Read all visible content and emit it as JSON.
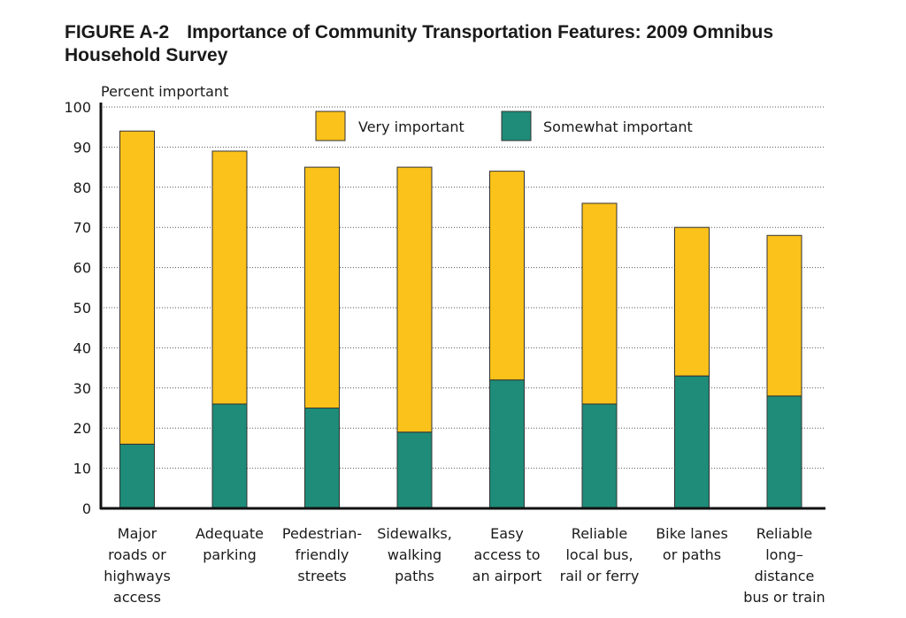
{
  "title": {
    "figure": "FIGURE A-2",
    "line1": "Importance of Community Transportation Features: 2009 Omnibus",
    "line2": "Household Survey"
  },
  "colors": {
    "very_important": "#FBC21B",
    "somewhat_important": "#1E8C78",
    "bar_stroke": "#333333",
    "grid": "#555555"
  },
  "chart_data": {
    "type": "bar",
    "stacked": true,
    "ylabel": "Percent important",
    "xlabel": "",
    "ylim": [
      0,
      100
    ],
    "yticks": [
      0,
      10,
      20,
      30,
      40,
      50,
      60,
      70,
      80,
      90,
      100
    ],
    "grid": true,
    "legend_position": "top",
    "categories": [
      [
        "Major",
        "roads or",
        "highways",
        "access"
      ],
      [
        "Adequate",
        "parking"
      ],
      [
        "Pedestrian-",
        "friendly",
        "streets"
      ],
      [
        "Sidewalks,",
        "walking",
        "paths"
      ],
      [
        "Easy",
        "access to",
        "an airport"
      ],
      [
        "Reliable",
        "local bus,",
        "rail or ferry"
      ],
      [
        "Bike lanes",
        "or paths"
      ],
      [
        "Reliable",
        "long–",
        "distance",
        "bus or train"
      ]
    ],
    "series": [
      {
        "name": "Somewhat important",
        "values": [
          16,
          26,
          25,
          19,
          32,
          26,
          33,
          28
        ]
      },
      {
        "name": "Very important",
        "values": [
          78,
          63,
          60,
          66,
          52,
          50,
          37,
          40
        ]
      }
    ],
    "totals": [
      94,
      89,
      85,
      85,
      84,
      76,
      70,
      68
    ]
  }
}
